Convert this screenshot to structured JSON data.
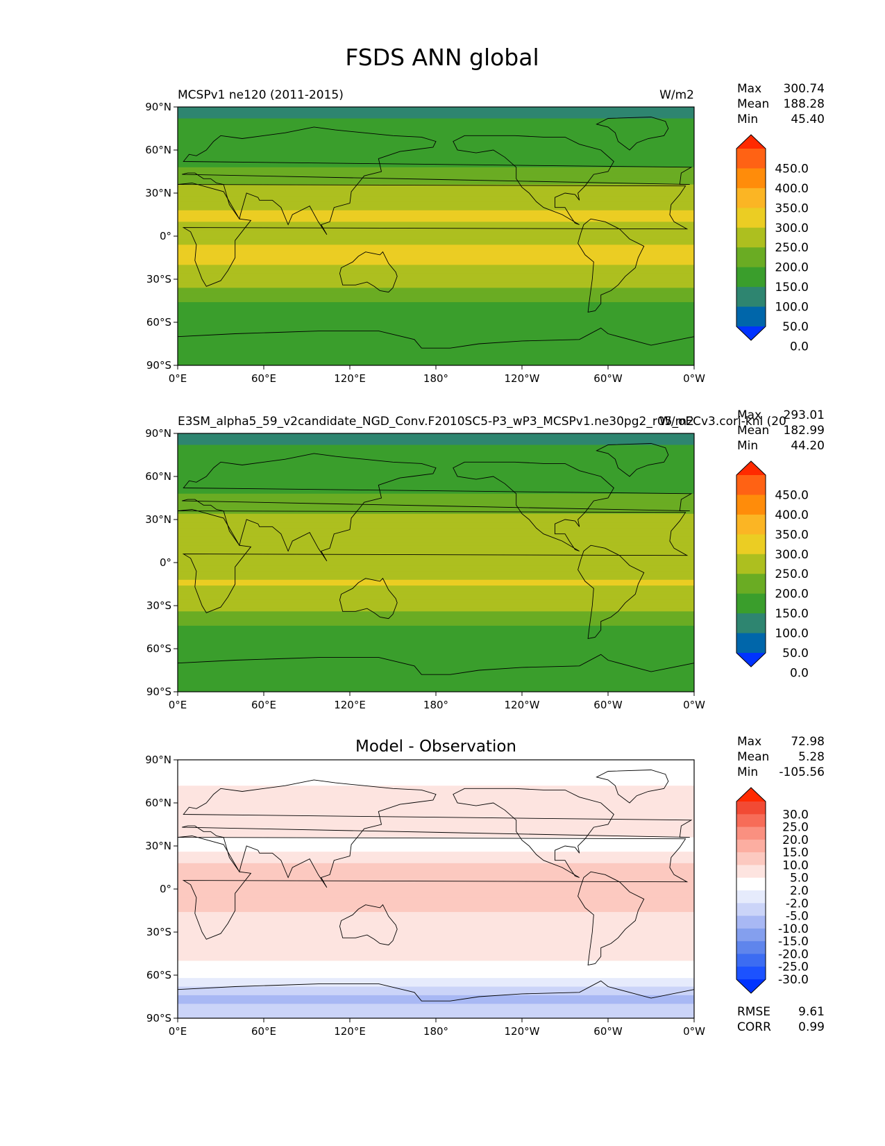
{
  "figure": {
    "title": "FSDS ANN global"
  },
  "colors": {
    "frame": "#000000",
    "coast": "#000000",
    "main_levels": [
      "#0033ff",
      "#0066aa",
      "#2e8570",
      "#3a9e2c",
      "#6aac23",
      "#adbf1f",
      "#ebcd23",
      "#fbb524",
      "#ff8c0a",
      "#ff6214",
      "#ff2a00"
    ],
    "diff_levels": [
      "#0033ff",
      "#1c52ff",
      "#3c6cf2",
      "#5f85ec",
      "#849fee",
      "#a8b8f4",
      "#cbd4f8",
      "#e6ebfc",
      "#ffffff",
      "#fde4e0",
      "#fcc9c0",
      "#fcaea1",
      "#fa9080",
      "#f76c58",
      "#f24a34",
      "#ff2a00"
    ]
  },
  "panels": [
    {
      "id": "test",
      "title_left": "MCSPv1 ne120 (2011-2015)",
      "title_right": "W/m2",
      "stats": [
        {
          "label": "Max",
          "value": "300.74"
        },
        {
          "label": "Mean",
          "value": "188.28"
        },
        {
          "label": "Min",
          "value": "45.40"
        }
      ],
      "colorbar_ticks": [
        "450.0",
        "400.0",
        "350.0",
        "300.0",
        "250.0",
        "200.0",
        "150.0",
        "100.0",
        "50.0",
        "0.0"
      ]
    },
    {
      "id": "reference",
      "title_left": "E3SM_alpha5_59_v2candidate_NGD_Conv.F2010SC5-P3_wP3_MCSPv1.ne30pg2_r05_oECv3.cori-knl (20",
      "title_right": "W/m2",
      "stats": [
        {
          "label": "Max",
          "value": "293.01"
        },
        {
          "label": "Mean",
          "value": "182.99"
        },
        {
          "label": "Min",
          "value": "44.20"
        }
      ],
      "colorbar_ticks": [
        "450.0",
        "400.0",
        "350.0",
        "300.0",
        "250.0",
        "200.0",
        "150.0",
        "100.0",
        "50.0",
        "0.0"
      ]
    },
    {
      "id": "difference",
      "title_center": "Model - Observation",
      "stats": [
        {
          "label": "Max",
          "value": "72.98"
        },
        {
          "label": "Mean",
          "value": "5.28"
        },
        {
          "label": "Min",
          "value": "-105.56"
        }
      ],
      "colorbar_ticks": [
        "30.0",
        "25.0",
        "20.0",
        "15.0",
        "10.0",
        "5.0",
        "2.0",
        "-2.0",
        "-5.0",
        "-10.0",
        "-15.0",
        "-20.0",
        "-25.0",
        "-30.0"
      ],
      "extra_stats": [
        {
          "label": "RMSE",
          "value": "9.61"
        },
        {
          "label": "CORR",
          "value": "0.99"
        }
      ]
    }
  ],
  "chart_data": [
    {
      "type": "heatmap",
      "title": "MCSPv1 ne120 (2011-2015)",
      "units": "W/m2",
      "x_tick_labels": [
        "0°E",
        "60°E",
        "120°E",
        "180°",
        "120°W",
        "60°W",
        "0°W"
      ],
      "y_tick_labels": [
        "90°N",
        "60°N",
        "30°N",
        "0°",
        "30°S",
        "60°S",
        "90°S"
      ],
      "xlim": [
        0,
        360
      ],
      "ylim": [
        -90,
        90
      ],
      "colorbar_levels": [
        0,
        50,
        100,
        150,
        200,
        250,
        300,
        350,
        400,
        450
      ],
      "zonal_profile": {
        "lat": [
          90,
          75,
          60,
          45,
          30,
          15,
          0,
          -15,
          -30,
          -45,
          -60,
          -75,
          -90
        ],
        "value": [
          95,
          105,
          120,
          160,
          225,
          255,
          240,
          265,
          225,
          150,
          110,
          140,
          135
        ]
      },
      "max": 300.74,
      "mean": 188.28,
      "min": 45.4
    },
    {
      "type": "heatmap",
      "title": "E3SM_alpha5_59_v2candidate_NGD_Conv.F2010SC5-P3_wP3_MCSPv1.ne30pg2_r05_oECv3.cori-knl (20",
      "units": "W/m2",
      "x_tick_labels": [
        "0°E",
        "60°E",
        "120°E",
        "180°",
        "120°W",
        "60°W",
        "0°W"
      ],
      "y_tick_labels": [
        "90°N",
        "60°N",
        "30°N",
        "0°",
        "30°S",
        "60°S",
        "90°S"
      ],
      "xlim": [
        0,
        360
      ],
      "ylim": [
        -90,
        90
      ],
      "colorbar_levels": [
        0,
        50,
        100,
        150,
        200,
        250,
        300,
        350,
        400,
        450
      ],
      "zonal_profile": {
        "lat": [
          90,
          75,
          60,
          45,
          30,
          15,
          0,
          -15,
          -30,
          -45,
          -60,
          -75,
          -90
        ],
        "value": [
          95,
          105,
          118,
          155,
          215,
          245,
          225,
          255,
          215,
          140,
          100,
          130,
          125
        ]
      },
      "max": 293.01,
      "mean": 182.99,
      "min": 44.2
    },
    {
      "type": "heatmap",
      "title": "Model - Observation",
      "x_tick_labels": [
        "0°E",
        "60°E",
        "120°E",
        "180°",
        "120°W",
        "60°W",
        "0°W"
      ],
      "y_tick_labels": [
        "90°N",
        "60°N",
        "30°N",
        "0°",
        "30°S",
        "60°S",
        "90°S"
      ],
      "xlim": [
        0,
        360
      ],
      "ylim": [
        -90,
        90
      ],
      "colorbar_levels": [
        -30,
        -25,
        -20,
        -15,
        -10,
        -5,
        -2,
        2,
        5,
        10,
        15,
        20,
        25,
        30
      ],
      "zonal_profile": {
        "lat": [
          90,
          75,
          60,
          45,
          30,
          15,
          0,
          -15,
          -30,
          -45,
          -60,
          -75,
          -90
        ],
        "value": [
          2,
          4,
          10,
          8,
          3,
          12,
          15,
          10,
          8,
          6,
          3,
          -6,
          -3
        ]
      },
      "max": 72.98,
      "mean": 5.28,
      "min": -105.56,
      "rmse": 9.61,
      "corr": 0.99
    }
  ]
}
